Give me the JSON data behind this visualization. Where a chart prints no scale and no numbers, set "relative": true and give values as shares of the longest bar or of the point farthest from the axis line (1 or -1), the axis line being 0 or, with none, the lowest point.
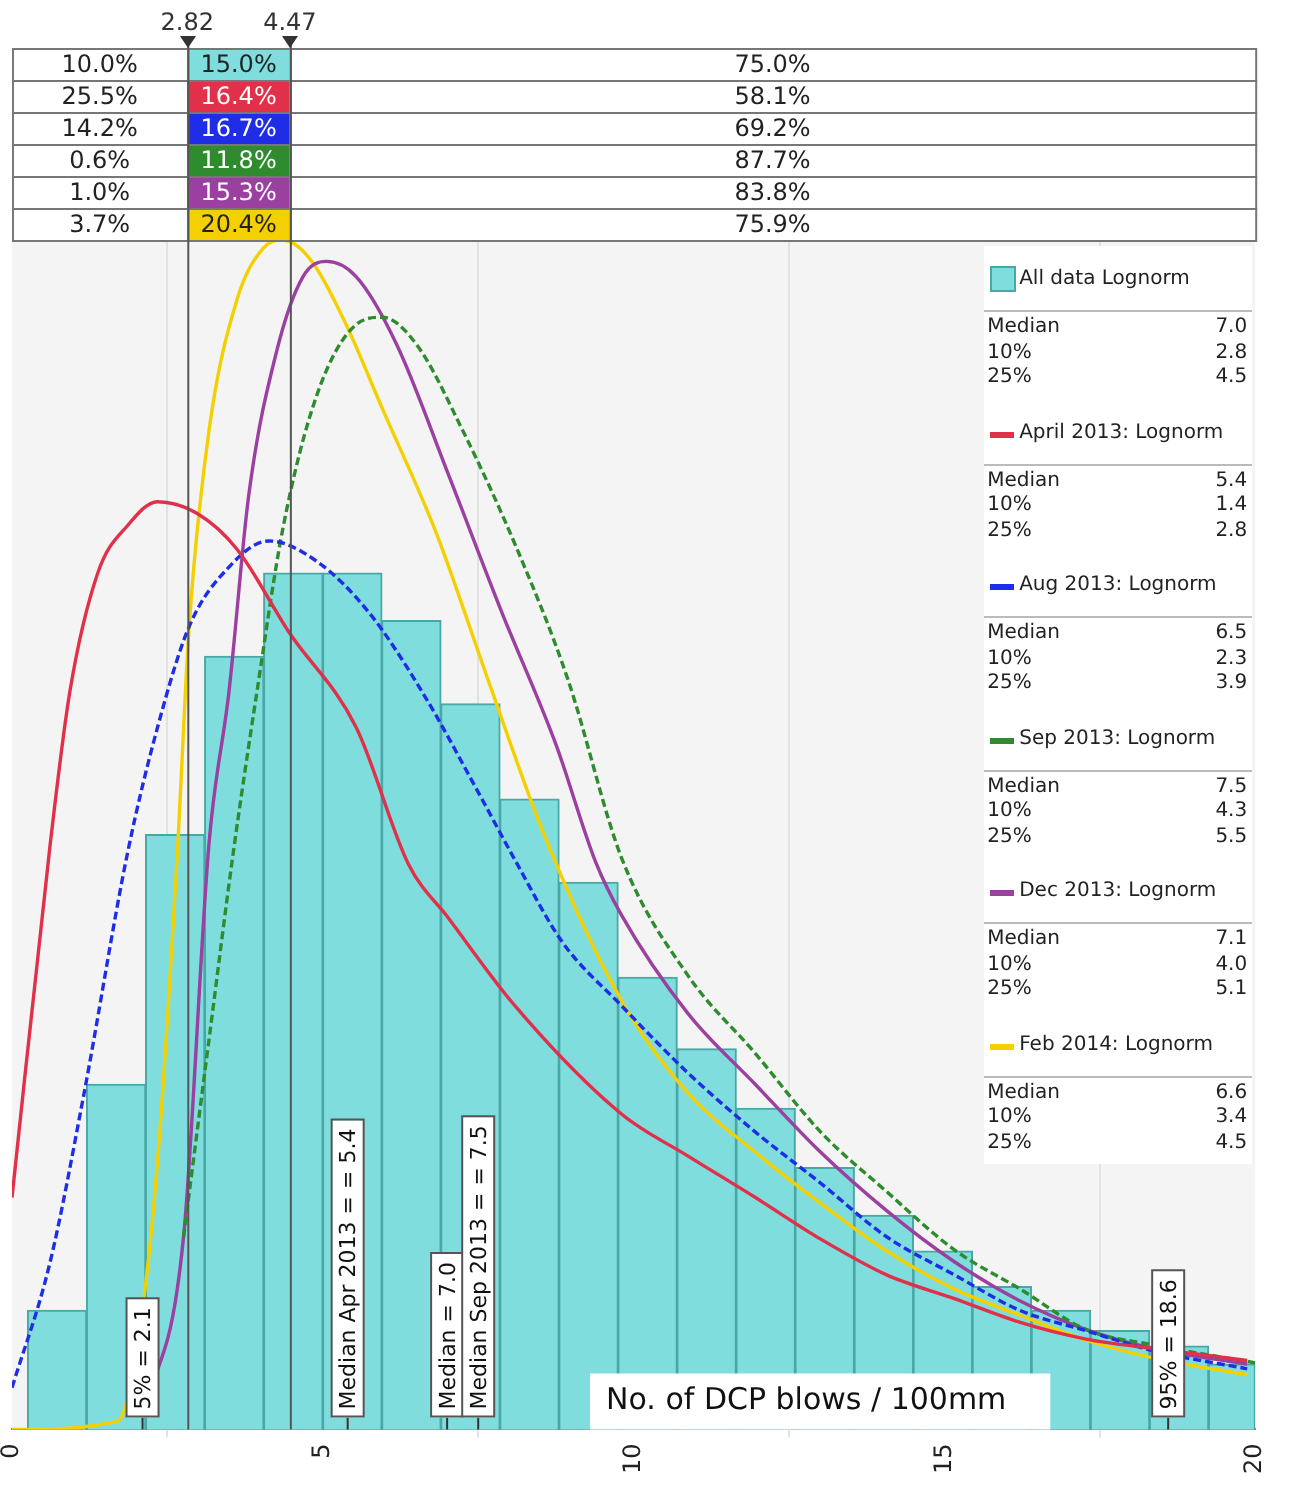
{
  "chart_data": {
    "type": "histogram",
    "relative": true,
    "xlabel": "No. of DCP blows / 100mm",
    "xlim": [
      0,
      20
    ],
    "xticks": [
      0,
      5,
      10,
      15,
      20
    ],
    "grid": "x",
    "legend": "top right",
    "bins": [
      0.25,
      1.2,
      2.15,
      3.1,
      4.05,
      5,
      5.95,
      6.9,
      7.85,
      8.8,
      9.75,
      10.7,
      11.65,
      12.6,
      13.55,
      14.5,
      15.45,
      16.4,
      17.35,
      18.3,
      19.25,
      20
    ],
    "series": [
      {
        "name": "All data Lognorm",
        "color": "#7fdedd",
        "values": [
          0.1,
          0.29,
          0.5,
          0.65,
          0.72,
          0.72,
          0.68,
          0.61,
          0.53,
          0.46,
          0.38,
          0.32,
          0.27,
          0.22,
          0.18,
          0.15,
          0.12,
          0.1,
          0.083,
          0.07,
          0.055
        ]
      },
      {
        "name": "April 2013: Lognorm",
        "type": "line",
        "color": "#e0304a",
        "x": [
          0,
          0.61,
          0.93,
          1.38,
          1.86,
          2.34,
          2.98,
          3.62,
          4.46,
          5.54,
          6.38,
          7.02,
          8.11,
          9.81,
          10.87,
          11.96,
          13.01,
          14.07,
          15.16,
          16.22,
          17.28,
          18.37,
          19.87
        ],
        "values": [
          0.195,
          0.49,
          0.62,
          0.72,
          0.76,
          0.78,
          0.77,
          0.74,
          0.67,
          0.59,
          0.475,
          0.43,
          0.355,
          0.265,
          0.23,
          0.195,
          0.16,
          0.13,
          0.11,
          0.09,
          0.076,
          0.068,
          0.058
        ]
      },
      {
        "name": "Aug 2013: Lognorm",
        "type": "line",
        "line_style": "dashed",
        "color": "#1f2ee6",
        "x": [
          0,
          0.61,
          1.15,
          1.86,
          2.34,
          2.85,
          3.49,
          4.13,
          4.9,
          5.74,
          6.6,
          7.56,
          8.11,
          8.85,
          9.81,
          10.87,
          11.96,
          13.01,
          14.07,
          15.16,
          16.22,
          17.28,
          18.37,
          19.87
        ],
        "values": [
          0.035,
          0.14,
          0.28,
          0.485,
          0.59,
          0.675,
          0.725,
          0.747,
          0.73,
          0.687,
          0.62,
          0.53,
          0.477,
          0.41,
          0.356,
          0.3,
          0.25,
          0.207,
          0.162,
          0.13,
          0.1,
          0.083,
          0.066,
          0.051
        ]
      },
      {
        "name": "Sep 2013: Lognorm",
        "type": "line",
        "line_style": "dashed",
        "color": "#2e8b2e",
        "x": [
          2.76,
          3.17,
          3.56,
          3.94,
          4.36,
          4.9,
          5.54,
          5.96,
          6.51,
          7.24,
          8.11,
          8.94,
          9.81,
          10.87,
          11.96,
          13.01,
          14.07,
          15.16,
          16.22,
          17.28,
          18.37,
          20
        ],
        "values": [
          0.162,
          0.328,
          0.485,
          0.62,
          0.758,
          0.869,
          0.929,
          0.935,
          0.912,
          0.841,
          0.742,
          0.631,
          0.48,
          0.382,
          0.316,
          0.25,
          0.2,
          0.151,
          0.118,
          0.084,
          0.071,
          0.056
        ]
      },
      {
        "name": "Dec 2013: Lognorm",
        "type": "line",
        "color": "#9b3fa0",
        "x": [
          2.12,
          2.76,
          3.17,
          3.49,
          3.81,
          4.26,
          4.68,
          5.06,
          5.54,
          6.19,
          7.02,
          7.88,
          8.75,
          9.39,
          9.81,
          10.87,
          11.96,
          13.01,
          14.07,
          15.16,
          16.22,
          17.28,
          18.37,
          19.87
        ],
        "values": [
          0.013,
          0.162,
          0.493,
          0.62,
          0.786,
          0.907,
          0.969,
          0.982,
          0.969,
          0.912,
          0.803,
          0.687,
          0.576,
          0.477,
          0.432,
          0.35,
          0.29,
          0.233,
          0.184,
          0.141,
          0.108,
          0.084,
          0.068,
          0.055
        ]
      },
      {
        "name": "Feb 2014: Lognorm",
        "type": "line",
        "color": "#f5d000",
        "x": [
          0,
          1.7,
          2.12,
          2.37,
          2.66,
          2.85,
          3.17,
          3.62,
          4.04,
          4.36,
          4.78,
          5.32,
          5.96,
          6.83,
          7.66,
          8.56,
          9.81,
          10.87,
          11.96,
          13.01,
          14.07,
          15.16,
          16.22,
          17.28,
          18.37,
          19.87
        ],
        "values": [
          0,
          0.007,
          0.11,
          0.245,
          0.485,
          0.675,
          0.84,
          0.95,
          0.993,
          1,
          0.985,
          0.935,
          0.858,
          0.753,
          0.63,
          0.5,
          0.36,
          0.283,
          0.233,
          0.19,
          0.15,
          0.118,
          0.096,
          0.075,
          0.06,
          0.046
        ]
      }
    ],
    "ref_lines": [
      {
        "axis": "x",
        "value": 2.82,
        "label": "2.82",
        "color": "#555555"
      },
      {
        "axis": "x",
        "value": 4.47,
        "label": "4.47",
        "color": "#555555"
      }
    ],
    "annotations": [
      "10.0%",
      "15.0%",
      "75.0%",
      "25.5%",
      "16.4%",
      "58.1%",
      "14.2%",
      "16.7%",
      "69.2%",
      "0.6%",
      "11.8%",
      "87.7%",
      "1.0%",
      "15.3%",
      "83.8%",
      "3.7%",
      "20.4%",
      "75.9%",
      "Median 7.0",
      "10% 2.8",
      "25% 4.5",
      "Median 5.4",
      "10% 1.4",
      "25% 2.8",
      "Median 6.5",
      "10% 2.3",
      "25% 3.9",
      "Median 7.5",
      "10% 4.3",
      "25% 5.5",
      "Median 7.1",
      "10% 4.0",
      "25% 5.1",
      "Median 6.6",
      "10% 3.4",
      "25% 4.5",
      {
        "text": "5% = 2.1",
        "x": 2.1,
        "y": 0
      },
      {
        "text": "Median Apr 2013 = = 5.4",
        "x": 5.4,
        "y": 0
      },
      {
        "text": "Median = 7.0",
        "x": 7.0,
        "y": 0
      },
      {
        "text": "Median Sep 2013 = = 7.5",
        "x": 7.5,
        "y": 0
      },
      {
        "text": "95% = 18.6",
        "x": 18.6,
        "y": 0
      }
    ]
  }
}
